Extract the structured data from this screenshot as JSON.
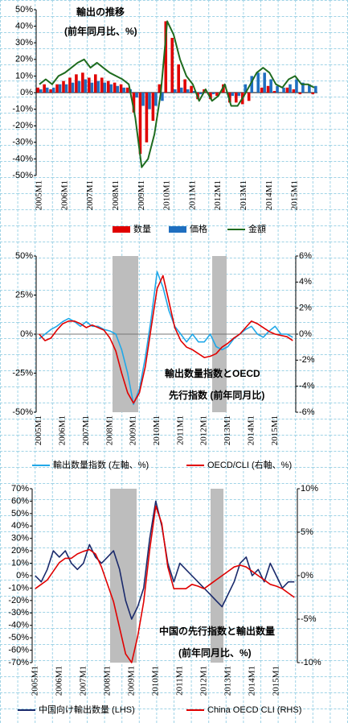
{
  "chart_data": [
    {
      "type": "combo",
      "title": "輸出の推移",
      "subtitle": "(前年同月比、%)",
      "categories": [
        "2005M1",
        null,
        null,
        null,
        "2006M1",
        null,
        null,
        null,
        "2007M1",
        null,
        null,
        null,
        "2008M1",
        null,
        null,
        null,
        "2009M1",
        null,
        null,
        null,
        "2010M1",
        null,
        null,
        null,
        "2011M1",
        null,
        null,
        null,
        "2012M1",
        null,
        null,
        null,
        "2013M1",
        null,
        null,
        null,
        "2014M1",
        null,
        null,
        null,
        "2015M1",
        null,
        null,
        null
      ],
      "ylim": [
        -50,
        50
      ],
      "yticks": [
        {
          "value": -50,
          "label": "-50%"
        },
        {
          "value": -40,
          "label": "-40%"
        },
        {
          "value": -30,
          "label": "-30%"
        },
        {
          "value": -20,
          "label": "-20%"
        },
        {
          "value": -10,
          "label": "-10%"
        },
        {
          "value": 0,
          "label": "0%"
        },
        {
          "value": 10,
          "label": "10%"
        },
        {
          "value": 20,
          "label": "20%"
        },
        {
          "value": 30,
          "label": "30%"
        },
        {
          "value": 40,
          "label": "40%"
        },
        {
          "value": 50,
          "label": "50%"
        }
      ],
      "series": [
        {
          "name": "数量",
          "type": "bar",
          "color": "#e00000",
          "values": [
            3,
            5,
            2,
            5,
            7,
            9,
            11,
            12,
            9,
            11,
            9,
            7,
            6,
            5,
            3,
            -12,
            -37,
            -30,
            -17,
            5,
            43,
            33,
            17,
            8,
            4,
            -4,
            2,
            -4,
            -2,
            5,
            -6,
            -6,
            -7,
            -5,
            0,
            3,
            4,
            1,
            0,
            3,
            2,
            -1,
            0,
            -1
          ]
        },
        {
          "name": "価格",
          "type": "bar",
          "color": "#1f6fc0",
          "values": [
            2,
            3,
            3,
            5,
            5,
            6,
            7,
            8,
            6,
            7,
            6,
            5,
            4,
            3,
            2,
            -3,
            -8,
            -10,
            -8,
            -5,
            0,
            2,
            3,
            2,
            1,
            -1,
            0,
            -1,
            0,
            0,
            -2,
            -2,
            5,
            10,
            12,
            12,
            8,
            4,
            3,
            5,
            8,
            6,
            5,
            4
          ]
        },
        {
          "name": "金額",
          "type": "line",
          "color": "#1e6b1e",
          "values": [
            5,
            8,
            5,
            10,
            12,
            15,
            18,
            20,
            15,
            18,
            15,
            12,
            10,
            8,
            5,
            -15,
            -45,
            -40,
            -25,
            0,
            43,
            35,
            20,
            10,
            5,
            -5,
            2,
            -5,
            -2,
            5,
            -8,
            -8,
            -2,
            5,
            12,
            15,
            12,
            5,
            3,
            8,
            10,
            5,
            5,
            3
          ]
        }
      ]
    },
    {
      "type": "line",
      "title": "輸出数量指数とOECD",
      "subtitle": "先行指数 (前年同月比)",
      "categories": [
        "2005M1",
        null,
        null,
        null,
        "2006M1",
        null,
        null,
        null,
        "2007M1",
        null,
        null,
        null,
        "2008M1",
        null,
        null,
        null,
        "2009M1",
        null,
        null,
        null,
        "2010M1",
        null,
        null,
        null,
        "2011M1",
        null,
        null,
        null,
        "2012M1",
        null,
        null,
        null,
        "2013M1",
        null,
        null,
        null,
        "2014M1",
        null,
        null,
        null,
        "2015M1",
        null,
        null,
        null
      ],
      "ylim": [
        -50,
        50
      ],
      "yticks": [
        {
          "value": -50,
          "label": "-50%"
        },
        {
          "value": -25,
          "label": "-25%"
        },
        {
          "value": 0,
          "label": "0%"
        },
        {
          "value": 25,
          "label": "25%"
        },
        {
          "value": 50,
          "label": "50%"
        }
      ],
      "y2lim": [
        -6,
        6
      ],
      "y2ticks": [
        {
          "value": -6,
          "label": "-6%"
        },
        {
          "value": -4,
          "label": "-4%"
        },
        {
          "value": -2,
          "label": "-2%"
        },
        {
          "value": 0,
          "label": "0%"
        },
        {
          "value": 2,
          "label": "2%"
        },
        {
          "value": 4,
          "label": "4%"
        },
        {
          "value": 6,
          "label": "6%"
        }
      ],
      "series": [
        {
          "name": "輸出数量指数 (左軸、%)",
          "color": "#20a8e8",
          "values": [
            -3,
            0,
            3,
            5,
            8,
            10,
            8,
            5,
            8,
            5,
            5,
            3,
            2,
            0,
            -10,
            -25,
            -45,
            -35,
            -15,
            10,
            40,
            30,
            15,
            5,
            0,
            -5,
            0,
            -5,
            -5,
            0,
            -8,
            -10,
            -8,
            -3,
            0,
            3,
            5,
            0,
            -2,
            2,
            5,
            0,
            0,
            -2
          ]
        },
        {
          "name": "OECD/CLI (右軸、%)",
          "color": "#e00000",
          "axis": "y2",
          "values": [
            0,
            -0.5,
            -0.3,
            0.3,
            0.8,
            1,
            1,
            0.8,
            0.5,
            0.7,
            0.5,
            0.3,
            -0.3,
            -1.3,
            -3,
            -4.5,
            -5.3,
            -4.5,
            -2.5,
            0.5,
            3.5,
            4.5,
            2.5,
            0.5,
            -0.5,
            -1,
            -1.2,
            -1.5,
            -1.8,
            -1.7,
            -1.5,
            -1,
            -0.7,
            -0.3,
            0,
            0.5,
            1,
            0.8,
            0.5,
            0.2,
            0,
            -0.1,
            -0.2,
            -0.5
          ]
        }
      ]
    },
    {
      "type": "line",
      "title": "中国の先行指数と輸出数量",
      "subtitle": "(前年同月比、%)",
      "categories": [
        "2005M1",
        null,
        null,
        null,
        "2006M1",
        null,
        null,
        null,
        "2007M1",
        null,
        null,
        null,
        "2008M1",
        null,
        null,
        null,
        "2009M1",
        null,
        null,
        null,
        "2010M1",
        null,
        null,
        null,
        "2011M1",
        null,
        null,
        null,
        "2012M1",
        null,
        null,
        null,
        "2013M1",
        null,
        null,
        null,
        "2014M1",
        null,
        null,
        null,
        "2015M1",
        null,
        null,
        null
      ],
      "ylim": [
        -70,
        70
      ],
      "yticks": [
        {
          "value": -70,
          "label": "-70%"
        },
        {
          "value": -60,
          "label": "-60%"
        },
        {
          "value": -50,
          "label": "-50%"
        },
        {
          "value": -40,
          "label": "-40%"
        },
        {
          "value": -30,
          "label": "-30%"
        },
        {
          "value": -20,
          "label": "-20%"
        },
        {
          "value": -10,
          "label": "-10%"
        },
        {
          "value": 0,
          "label": "0%"
        },
        {
          "value": 10,
          "label": "10%"
        },
        {
          "value": 20,
          "label": "20%"
        },
        {
          "value": 30,
          "label": "30%"
        },
        {
          "value": 40,
          "label": "40%"
        },
        {
          "value": 50,
          "label": "50%"
        },
        {
          "value": 60,
          "label": "60%"
        },
        {
          "value": 70,
          "label": "70%"
        }
      ],
      "y2lim": [
        -10,
        10
      ],
      "y2ticks": [
        {
          "value": -10,
          "label": "-10%"
        },
        {
          "value": -5,
          "label": "-5%"
        },
        {
          "value": 0,
          "label": "0%"
        },
        {
          "value": 5,
          "label": "5%"
        },
        {
          "value": 10,
          "label": "10%"
        }
      ],
      "series": [
        {
          "name": "中国向け輸出数量 (LHS)",
          "color": "#1a2a6c",
          "values": [
            0,
            -5,
            5,
            20,
            15,
            20,
            10,
            5,
            10,
            25,
            15,
            10,
            15,
            20,
            5,
            -20,
            -35,
            -25,
            -10,
            30,
            60,
            40,
            10,
            -5,
            10,
            5,
            0,
            -5,
            -10,
            -15,
            -20,
            -25,
            -15,
            -5,
            10,
            15,
            0,
            5,
            -5,
            10,
            0,
            -10,
            -5,
            -5
          ]
        },
        {
          "name": "China OECD CLI (RHS)",
          "color": "#e00000",
          "axis": "y2",
          "values": [
            -1.5,
            -1,
            -0.5,
            0.5,
            1.5,
            2,
            2,
            2.5,
            2.8,
            3,
            2.5,
            1,
            -1,
            -3,
            -6,
            -9,
            -10,
            -7,
            -3,
            3,
            8,
            6,
            1,
            -1.5,
            -1.5,
            -1.5,
            -1,
            -1.2,
            -1.5,
            -1,
            -0.5,
            0,
            0.5,
            1,
            1.2,
            1,
            0.5,
            0,
            -0.5,
            -1,
            -1.2,
            -1.5,
            -2,
            -2.5
          ]
        }
      ]
    }
  ]
}
